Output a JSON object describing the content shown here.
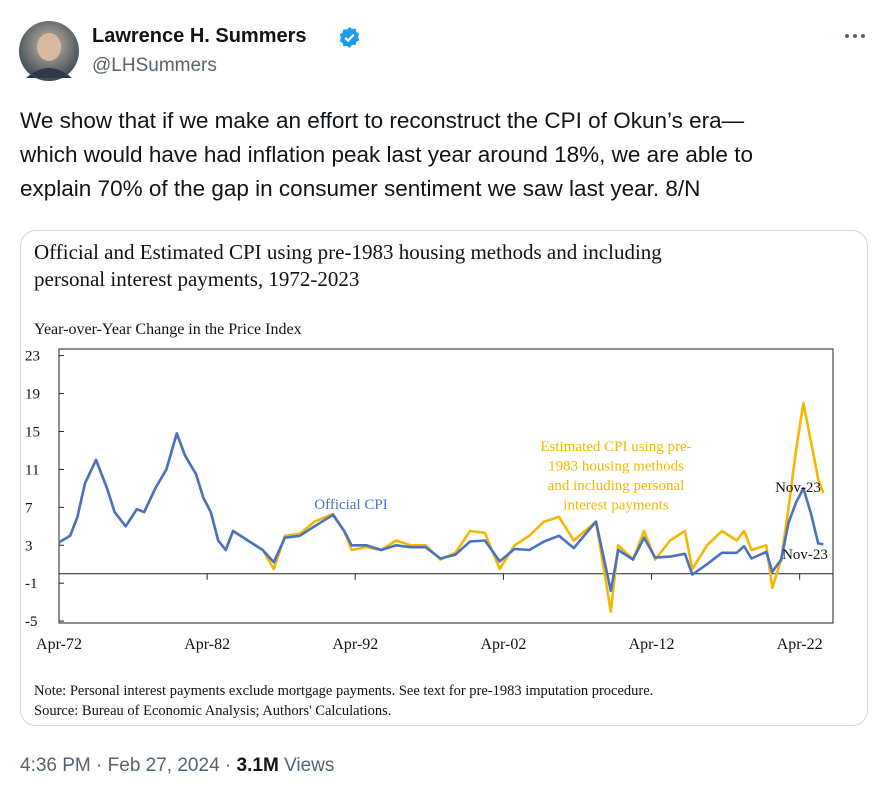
{
  "tweet": {
    "author_name": "Lawrence H. Summers",
    "handle": "@LHSummers",
    "text_lines": [
      "We show that if we make an effort to reconstruct the CPI of Okun’s era—",
      "which would have had inflation peak last year around 18%, we are able to",
      "explain 70% of the gap in consumer sentiment we saw last year. 8/N"
    ],
    "time": "4:36 PM",
    "separator": "·",
    "date": "Feb 27, 2024",
    "views_count": "3.1M",
    "views_label": "Views"
  },
  "chart_data": {
    "type": "line",
    "title_lines": [
      "Official and Estimated CPI using pre-1983 housing methods and including",
      "personal interest payments, 1972-2023"
    ],
    "y_label": "Year-over-Year Change in the Price Index",
    "x": [
      1972.25,
      1973,
      1973.5,
      1974,
      1974.75,
      1975.5,
      1976,
      1976.75,
      1977.5,
      1978,
      1978.75,
      1979.5,
      1980.2,
      1980.75,
      1981.5,
      1982,
      1982.5,
      1983,
      1983.5,
      1984,
      1985,
      1986,
      1986.75,
      1987.5,
      1988.5,
      1989.5,
      1990.75,
      1991.5,
      1992,
      1993,
      1994,
      1995,
      1996,
      1997,
      1998,
      1999,
      2000,
      2001,
      2002,
      2003,
      2004,
      2005,
      2006,
      2007,
      2008.5,
      2009.5,
      2010,
      2011,
      2011.75,
      2012.5,
      2013.5,
      2014.5,
      2015,
      2016,
      2017,
      2018,
      2018.5,
      2019,
      2020,
      2020.4,
      2021,
      2021.5,
      2022,
      2022.5,
      2023,
      2023.5,
      2023.85
    ],
    "series": [
      {
        "name": "Estimated CPI",
        "color": "#f5b800",
        "values": [
          3.3,
          4,
          6,
          9.5,
          12,
          9,
          6.5,
          5,
          6.8,
          6.5,
          9,
          11,
          14.8,
          12.5,
          10.5,
          8,
          6.5,
          3.5,
          2.5,
          4.5,
          3.5,
          2.5,
          0.5,
          4,
          4.2,
          5.5,
          6.3,
          4.5,
          2.5,
          2.8,
          2.5,
          3.5,
          3,
          3,
          1.5,
          2.2,
          4.5,
          4.3,
          0.5,
          3,
          4,
          5.5,
          6,
          3.5,
          5.5,
          -4,
          3,
          1.5,
          4.5,
          1.5,
          3.5,
          4.5,
          0.5,
          3,
          4.5,
          3.5,
          4.5,
          2.5,
          3,
          -1.5,
          1.5,
          7,
          13,
          18,
          14,
          10,
          8.5
        ]
      },
      {
        "name": "Official CPI",
        "color": "#4a72c4",
        "values": [
          3.3,
          4,
          6,
          9.5,
          12,
          9,
          6.5,
          5,
          6.8,
          6.5,
          9,
          11,
          14.8,
          12.5,
          10.5,
          8,
          6.5,
          3.5,
          2.5,
          4.5,
          3.5,
          2.5,
          1.2,
          3.8,
          4,
          5,
          6.2,
          4.5,
          3,
          3,
          2.5,
          3,
          2.8,
          2.8,
          1.6,
          2,
          3.4,
          3.5,
          1.3,
          2.6,
          2.5,
          3.4,
          4,
          2.7,
          5.5,
          -1.8,
          2.5,
          1.5,
          3.8,
          1.7,
          1.8,
          2.1,
          -0.1,
          1,
          2.2,
          2.2,
          2.9,
          1.6,
          2.3,
          0.2,
          1.5,
          5.4,
          7.5,
          9,
          6.4,
          3.2,
          3.1
        ]
      }
    ],
    "xlim": [
      1972.25,
      2024.5
    ],
    "xticks": [
      {
        "value": 1972.25,
        "label": "Apr-72"
      },
      {
        "value": 1982.25,
        "label": "Apr-82"
      },
      {
        "value": 1992.25,
        "label": "Apr-92"
      },
      {
        "value": 2002.25,
        "label": "Apr-02"
      },
      {
        "value": 2012.25,
        "label": "Apr-12"
      },
      {
        "value": 2022.25,
        "label": "Apr-22"
      }
    ],
    "ylim": [
      -5.2,
      23.7
    ],
    "yticks": [
      -5,
      -1,
      3,
      7,
      11,
      15,
      19,
      23
    ],
    "annotations": {
      "official": "Official CPI",
      "estimated_lines": [
        "Estimated CPI using pre-",
        "1983 housing methods",
        "and including  personal",
        "interest payments"
      ],
      "nov_upper": "Nov-23",
      "nov_lower": "Nov-23"
    },
    "note_lines": [
      "Note: Personal interest payments exclude mortgage payments. See text for pre-1983 imputation procedure.",
      "Source: Bureau of Economic Analysis; Authors' Calculations."
    ]
  }
}
